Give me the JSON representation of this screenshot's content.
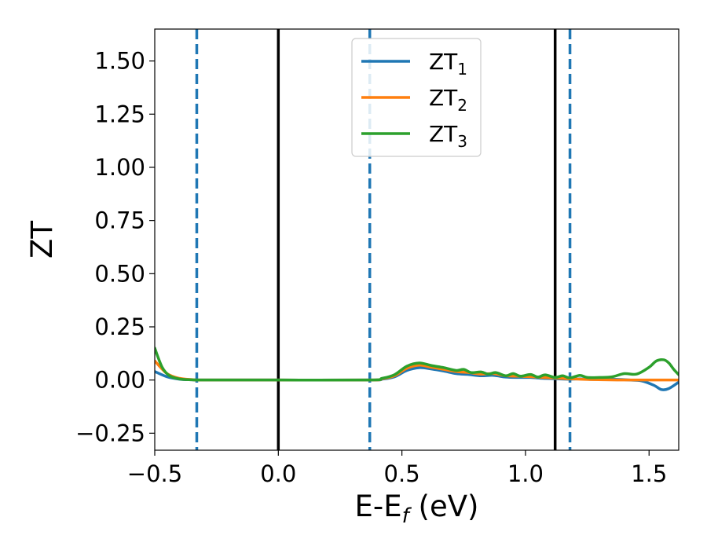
{
  "chart_data": {
    "type": "line",
    "title": "",
    "xlabel": {
      "main": "E-E",
      "sub": "f",
      "unit": " (eV)"
    },
    "ylabel": "ZT",
    "xlim": [
      -0.5,
      1.62
    ],
    "ylim": [
      -0.33,
      1.65
    ],
    "xticks": [
      -0.5,
      0.0,
      0.5,
      1.0,
      1.5
    ],
    "xtick_labels": [
      "−0.5",
      "0.0",
      "0.5",
      "1.0",
      "1.5"
    ],
    "yticks": [
      -0.25,
      0.0,
      0.25,
      0.5,
      0.75,
      1.0,
      1.25,
      1.5
    ],
    "ytick_labels": [
      "−0.25",
      "0.00",
      "0.25",
      "0.50",
      "0.75",
      "1.00",
      "1.25",
      "1.50"
    ],
    "grid": false,
    "legend_position": "top-center",
    "vlines": [
      {
        "x": -0.33,
        "style": "dashed",
        "color": "#1f77b4"
      },
      {
        "x": 0.0,
        "style": "solid",
        "color": "#000000"
      },
      {
        "x": 0.37,
        "style": "dashed",
        "color": "#1f77b4"
      },
      {
        "x": 1.12,
        "style": "solid",
        "color": "#000000"
      },
      {
        "x": 1.18,
        "style": "dashed",
        "color": "#1f77b4"
      }
    ],
    "series": [
      {
        "name": "ZT",
        "sub": "1",
        "color": "#1f77b4",
        "x": [
          -0.5,
          -0.45,
          -0.4,
          -0.35,
          -0.3,
          0.0,
          0.37,
          0.42,
          0.47,
          0.52,
          0.57,
          0.62,
          0.67,
          0.72,
          0.77,
          0.82,
          0.87,
          0.92,
          0.97,
          1.02,
          1.07,
          1.12,
          1.17,
          1.22,
          1.27,
          1.32,
          1.37,
          1.42,
          1.47,
          1.52,
          1.55,
          1.58,
          1.62
        ],
        "y": [
          0.04,
          0.015,
          0.004,
          0.001,
          0.0,
          0.0,
          0.0,
          0.004,
          0.015,
          0.045,
          0.058,
          0.052,
          0.042,
          0.03,
          0.026,
          0.02,
          0.022,
          0.014,
          0.012,
          0.012,
          0.008,
          0.006,
          0.004,
          0.005,
          0.003,
          0.004,
          0.003,
          0.0,
          -0.004,
          -0.025,
          -0.045,
          -0.04,
          -0.01
        ]
      },
      {
        "name": "ZT",
        "sub": "2",
        "color": "#ff7f0e",
        "x": [
          -0.5,
          -0.45,
          -0.4,
          -0.35,
          -0.3,
          0.0,
          0.37,
          0.42,
          0.47,
          0.52,
          0.57,
          0.62,
          0.67,
          0.72,
          0.77,
          0.82,
          0.87,
          0.92,
          0.97,
          1.02,
          1.07,
          1.12,
          1.17,
          1.22,
          1.27,
          1.32,
          1.37,
          1.42,
          1.47,
          1.52,
          1.57,
          1.62
        ],
        "y": [
          0.09,
          0.03,
          0.008,
          0.002,
          0.0,
          0.0,
          0.0,
          0.006,
          0.02,
          0.055,
          0.07,
          0.06,
          0.05,
          0.04,
          0.035,
          0.028,
          0.03,
          0.02,
          0.018,
          0.016,
          0.012,
          0.01,
          0.006,
          0.004,
          0.002,
          0.001,
          0.0,
          0.0,
          0.0,
          0.0,
          0.0,
          0.0
        ]
      },
      {
        "name": "ZT",
        "sub": "3",
        "color": "#2ca02c",
        "x": [
          -0.5,
          -0.47,
          -0.44,
          -0.4,
          -0.35,
          -0.3,
          0.0,
          0.37,
          0.42,
          0.47,
          0.52,
          0.57,
          0.62,
          0.67,
          0.72,
          0.75,
          0.78,
          0.82,
          0.85,
          0.88,
          0.92,
          0.95,
          0.98,
          1.02,
          1.05,
          1.08,
          1.12,
          1.15,
          1.18,
          1.22,
          1.25,
          1.3,
          1.35,
          1.4,
          1.45,
          1.5,
          1.53,
          1.56,
          1.58,
          1.6,
          1.62
        ],
        "y": [
          0.15,
          0.06,
          0.02,
          0.005,
          0.001,
          0.0,
          0.0,
          0.0,
          0.008,
          0.025,
          0.065,
          0.08,
          0.068,
          0.058,
          0.045,
          0.05,
          0.035,
          0.038,
          0.028,
          0.035,
          0.02,
          0.03,
          0.018,
          0.026,
          0.014,
          0.024,
          0.012,
          0.02,
          0.01,
          0.022,
          0.012,
          0.012,
          0.015,
          0.03,
          0.028,
          0.06,
          0.09,
          0.095,
          0.08,
          0.05,
          0.025
        ]
      }
    ]
  }
}
